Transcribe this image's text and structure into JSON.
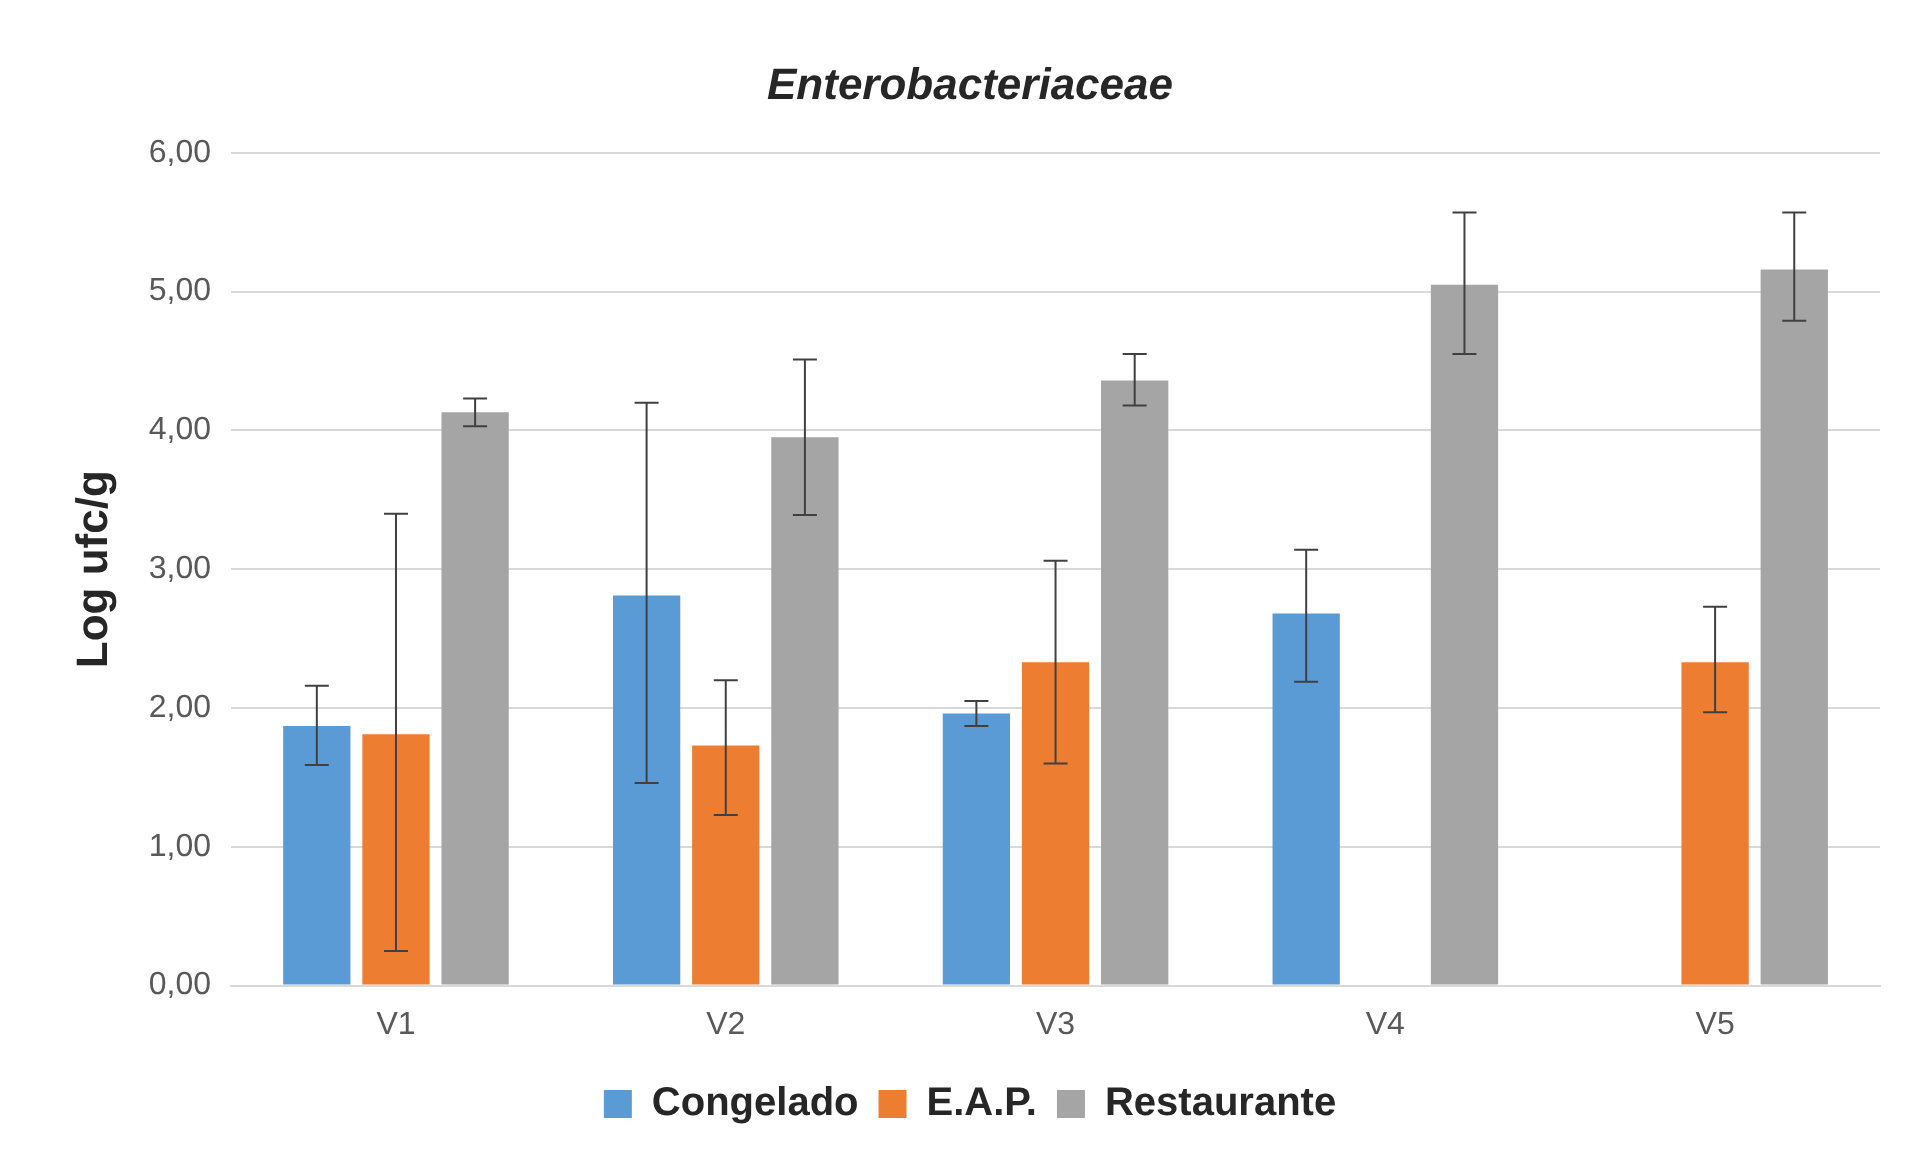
{
  "chart_data": {
    "type": "bar",
    "title": "Enterobacteriaceae",
    "ylabel": "Log ufc/g",
    "categories": [
      "V1",
      "V2",
      "V3",
      "V4",
      "V5"
    ],
    "series": [
      {
        "name": "Congelado",
        "color": "#5b9bd5",
        "values": [
          1.87,
          2.81,
          1.96,
          2.68,
          null
        ],
        "errors": [
          [
            1.59,
            2.16
          ],
          [
            1.46,
            4.2
          ],
          [
            1.87,
            2.05
          ],
          [
            2.19,
            3.14
          ],
          null
        ]
      },
      {
        "name": "E.A.P.",
        "color": "#ed7d31",
        "values": [
          1.81,
          1.73,
          2.33,
          null,
          2.33
        ],
        "errors": [
          [
            0.25,
            3.4
          ],
          [
            1.23,
            2.2
          ],
          [
            1.6,
            3.06
          ],
          null,
          [
            1.97,
            2.73
          ]
        ]
      },
      {
        "name": "Restaurante",
        "color": "#a5a5a5",
        "values": [
          4.13,
          3.95,
          4.36,
          5.05,
          5.16
        ],
        "errors": [
          [
            4.03,
            4.23
          ],
          [
            3.39,
            4.51
          ],
          [
            4.18,
            4.55
          ],
          [
            4.55,
            5.57
          ],
          [
            4.79,
            5.57
          ]
        ]
      }
    ],
    "ylim": [
      0,
      6
    ],
    "yticks": [
      {
        "value": 0,
        "label": "0,00"
      },
      {
        "value": 1,
        "label": "1,00"
      },
      {
        "value": 2,
        "label": "2,00"
      },
      {
        "value": 3,
        "label": "3,00"
      },
      {
        "value": 4,
        "label": "4,00"
      },
      {
        "value": 5,
        "label": "5,00"
      },
      {
        "value": 6,
        "label": "6,00"
      }
    ],
    "grid": "y",
    "legend": "bottom"
  }
}
